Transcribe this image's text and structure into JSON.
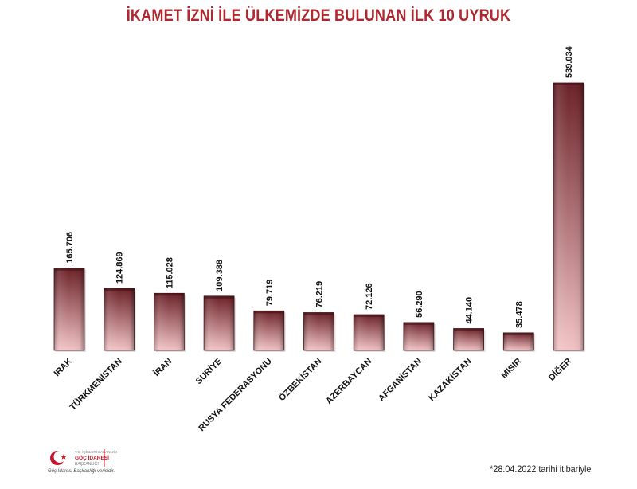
{
  "chart_data": {
    "type": "bar",
    "title": "İKAMET İZNİ İLE ÜLKEMİZDE BULUNAN İLK 10 UYRUK",
    "categories": [
      "IRAK",
      "TÜRKMENİSTAN",
      "İRAN",
      "SURİYE",
      "RUSYA FEDERASYONU",
      "ÖZBEKİSTAN",
      "AZERBAYCAN",
      "AFGANİSTAN",
      "KAZAKİSTAN",
      "MISIR",
      "DİĞER"
    ],
    "values": [
      165706,
      124869,
      115028,
      109388,
      79719,
      76219,
      72126,
      56290,
      44140,
      35478,
      539034
    ],
    "value_labels": [
      "165.706",
      "124.869",
      "115.028",
      "109.388",
      "79.719",
      "76.219",
      "72.126",
      "56.290",
      "44.140",
      "35.478",
      "539.034"
    ],
    "ylim": [
      0,
      539034
    ],
    "grid": false,
    "bar_color_top": "#6b2228",
    "bar_color_bottom": "#f2c4c6"
  },
  "logo": {
    "top_text": "T.C. İÇİŞLERİ BAKANLIĞI",
    "name_line1": "GÖÇ İDARESİ",
    "name_line2": "BAŞKANLIĞI",
    "caption": "Göç İdaresi Başkanlığı verisidir.",
    "accent": "#c0182a"
  },
  "footnote": "*28.04.2022 tarihi itibariyle"
}
